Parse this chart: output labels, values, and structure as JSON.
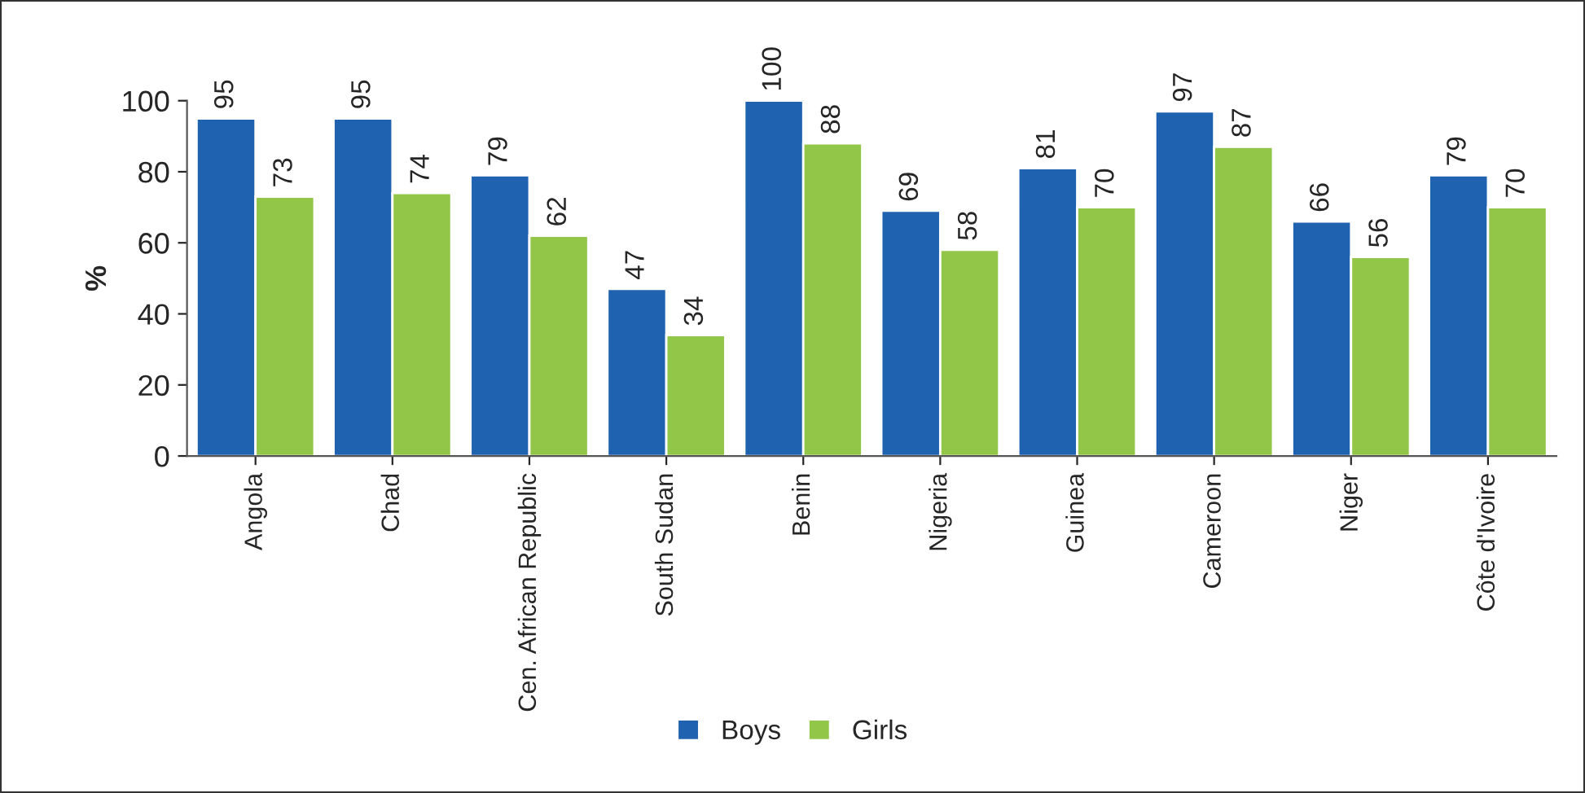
{
  "chart_data": {
    "type": "bar",
    "ylabel": "%",
    "categories": [
      "Angola",
      "Chad",
      "Cen. African Republic",
      "South Sudan",
      "Benin",
      "Nigeria",
      "Guinea",
      "Cameroon",
      "Niger",
      "Côte d'Ivoire"
    ],
    "series": [
      {
        "name": "Boys",
        "color": "#1f63b0",
        "values": [
          95,
          95,
          79,
          47,
          100,
          69,
          81,
          97,
          66,
          79
        ]
      },
      {
        "name": "Girls",
        "color": "#92c648",
        "values": [
          73,
          74,
          62,
          34,
          88,
          58,
          70,
          87,
          56,
          70
        ]
      }
    ],
    "ylim": [
      0,
      100
    ],
    "yticks": [
      0,
      20,
      40,
      60,
      80,
      100
    ],
    "data_labels": true,
    "grid": false,
    "legend": "bottom"
  }
}
